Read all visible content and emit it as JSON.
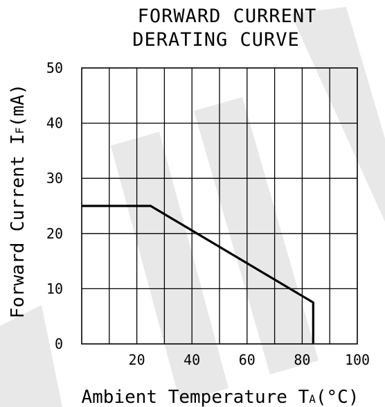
{
  "chart_data": {
    "type": "line",
    "title_lines": [
      "FORWARD CURRENT",
      "DERATING CURVE"
    ],
    "xlabel_parts": [
      "Ambient Temperature T",
      "A",
      "(°C)"
    ],
    "ylabel_parts": [
      "Forward Current I",
      "F",
      "(mA)"
    ],
    "xlim": [
      0,
      100
    ],
    "ylim": [
      0,
      50
    ],
    "x_ticks": [
      20,
      40,
      60,
      80,
      100
    ],
    "y_ticks": [
      0,
      10,
      20,
      30,
      40,
      50
    ],
    "x_grid_step": 10,
    "y_grid_step": 10,
    "grid": true,
    "series": [
      {
        "x": [
          0,
          25,
          84,
          84
        ],
        "y": [
          25,
          25,
          7.5,
          0
        ]
      }
    ]
  }
}
